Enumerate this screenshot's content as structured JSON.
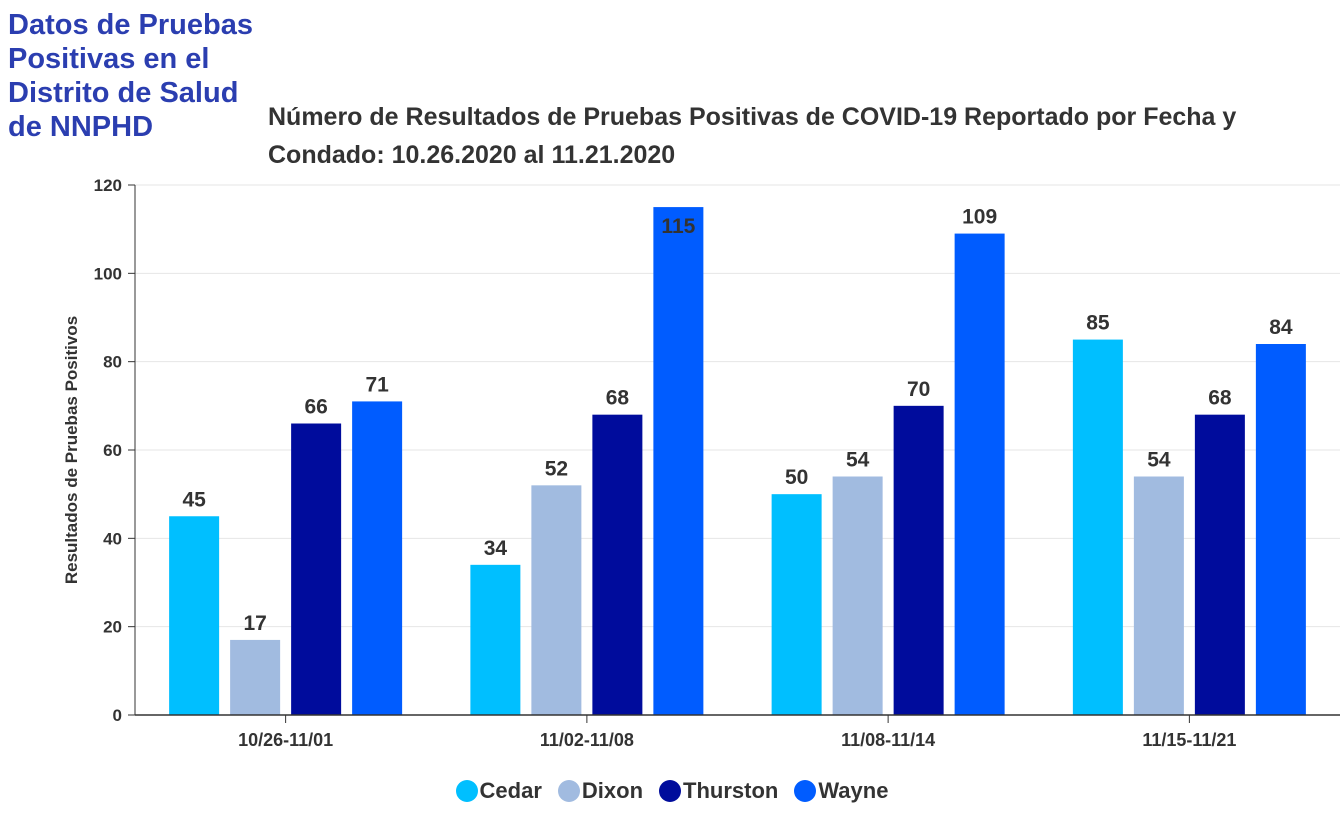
{
  "page": {
    "heading": "Datos de Pruebas Positivas en el Distrito de Salud de NNPHD"
  },
  "chart_data": {
    "type": "bar",
    "title": "Número de Resultados de Pruebas Positivas de COVID-19 Reportado por Fecha y Condado: 10.26.2020 al 11.21.2020",
    "xlabel": "",
    "ylabel": "Resultados de Pruebas Positivos",
    "ylim": [
      0,
      120
    ],
    "yticks": [
      0,
      20,
      40,
      60,
      80,
      100,
      120
    ],
    "grid": true,
    "legend_position": "bottom",
    "categories": [
      "10/26-11/01",
      "11/02-11/08",
      "11/08-11/14",
      "11/15-11/21"
    ],
    "series": [
      {
        "name": "Cedar",
        "color": "#00bfff",
        "values": [
          45,
          34,
          50,
          85
        ]
      },
      {
        "name": "Dixon",
        "color": "#a1bbe0",
        "values": [
          17,
          52,
          54,
          54
        ]
      },
      {
        "name": "Thurston",
        "color": "#000c9c",
        "values": [
          66,
          68,
          70,
          68
        ]
      },
      {
        "name": "Wayne",
        "color": "#005cff",
        "values": [
          71,
          115,
          109,
          84
        ]
      }
    ]
  }
}
